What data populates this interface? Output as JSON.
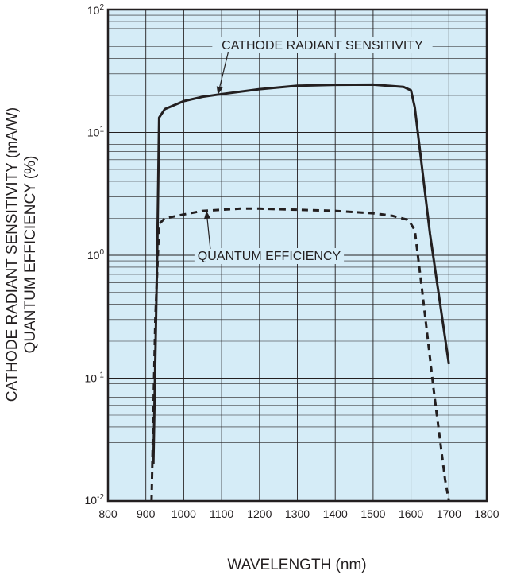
{
  "chart_data": {
    "type": "line",
    "xlabel": "WAVELENGTH (nm)",
    "ylabel_lines": [
      "CATHODE RADIANT SENSITIVITY (mA/W)",
      "QUANTUM EFFICIENCY (%)"
    ],
    "xlim": [
      800,
      1800
    ],
    "ylim": [
      0.01,
      100
    ],
    "yscale": "log",
    "grid": true,
    "x_ticks": [
      800,
      900,
      1000,
      1100,
      1200,
      1300,
      1400,
      1500,
      1600,
      1700,
      1800
    ],
    "y_ticks": [
      {
        "value": 100,
        "base": "10",
        "exp": "2"
      },
      {
        "value": 10,
        "base": "10",
        "exp": "1"
      },
      {
        "value": 1,
        "base": "10",
        "exp": "0"
      },
      {
        "value": 0.1,
        "base": "10",
        "exp": "-1"
      },
      {
        "value": 0.01,
        "base": "10",
        "exp": "-2"
      }
    ],
    "colors": {
      "plot_background": "#d5ecf7",
      "grid": "#231f20",
      "line": "#231f20"
    },
    "series": [
      {
        "name": "CATHODE RADIANT SENSITIVITY",
        "style": "solid",
        "x": [
          920,
          930,
          935,
          950,
          1000,
          1050,
          1100,
          1200,
          1300,
          1400,
          1500,
          1580,
          1600,
          1610,
          1650,
          1700
        ],
        "y": [
          0.02,
          1.0,
          13.2,
          15.5,
          18.0,
          19.5,
          20.5,
          22.5,
          24.0,
          24.4,
          24.5,
          23.5,
          22.0,
          16.0,
          1.5,
          0.13
        ]
      },
      {
        "name": "QUANTUM EFFICIENCY",
        "style": "dashed",
        "x": [
          915,
          925,
          935,
          950,
          1000,
          1050,
          1100,
          1150,
          1200,
          1300,
          1400,
          1500,
          1550,
          1590,
          1600,
          1610,
          1630,
          1660,
          1690,
          1700
        ],
        "y": [
          0.01,
          0.3,
          1.8,
          2.0,
          2.15,
          2.3,
          2.35,
          2.4,
          2.4,
          2.35,
          2.3,
          2.2,
          2.1,
          1.95,
          1.8,
          1.6,
          0.5,
          0.08,
          0.015,
          0.01
        ]
      }
    ],
    "annotations": [
      {
        "text": "CATHODE RADIANT SENSITIVITY",
        "series": 0,
        "points_to_x": 1090
      },
      {
        "text": "QUANTUM EFFICIENCY",
        "series": 1,
        "points_to_x": 1060
      }
    ]
  }
}
